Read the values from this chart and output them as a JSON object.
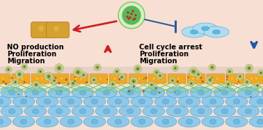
{
  "bg_color": "#f7dfd4",
  "left_cell_color": "#d4a030",
  "left_cell_outline": "#b88020",
  "right_cell_color": "#a8dcf0",
  "right_cell_outline": "#60b0d8",
  "nanoparticle_outer": "#c8e8b0",
  "nanoparticle_inner": "#5ab85a",
  "nanoparticle_dots": "#cc2222",
  "arrow_left_color": "#cc2020",
  "arrow_right_color": "#2a5a9a",
  "endothelial_color": "#f0a820",
  "endothelial_outline": "#c88010",
  "smooth_muscle_color": "#90c8e8",
  "smooth_muscle_outline": "#50a0cc",
  "matrix_color": "#70cc50",
  "up_arrow_color": "#cc2020",
  "down_arrow_color": "#2255aa",
  "left_text_line1": "NO production",
  "left_text_line2": "Proliferation",
  "left_text_line3": "Migration",
  "right_text_line1": "Cell cycle arrest",
  "right_text_line2": "Proliferation",
  "right_text_line3": "Migration",
  "shadow_color": "#c8b8a8",
  "nano_scatter_outer": "#c8c870",
  "nano_scatter_inner": "#7ab870",
  "nano_scatter_dot": "#8b5a20"
}
